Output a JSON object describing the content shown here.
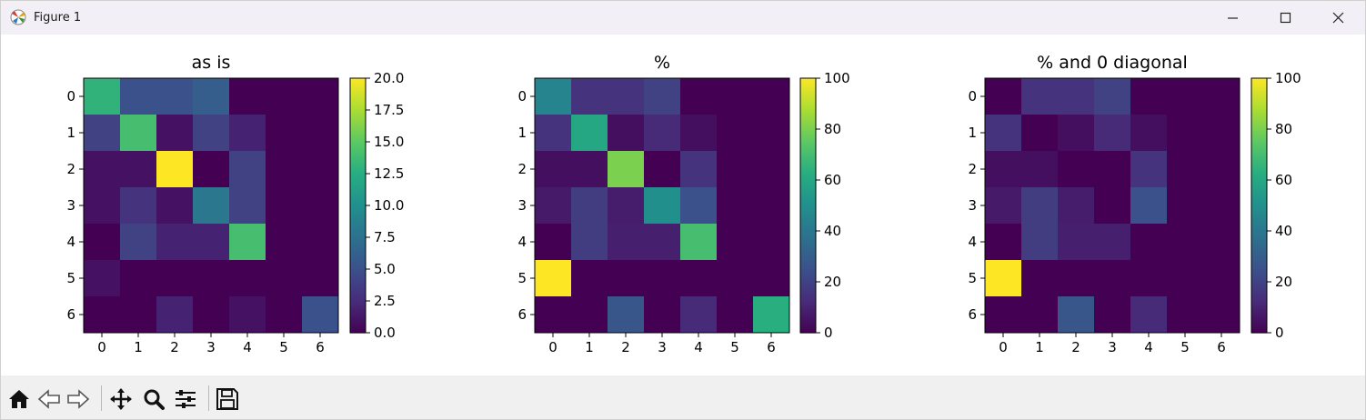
{
  "window": {
    "title": "Figure 1"
  },
  "toolbar": {
    "buttons": [
      {
        "name": "home-button",
        "icon": "home-icon"
      },
      {
        "name": "back-button",
        "icon": "arrow-left-icon"
      },
      {
        "name": "forward-button",
        "icon": "arrow-right-icon"
      },
      {
        "name": "pan-button",
        "icon": "move-icon"
      },
      {
        "name": "zoom-button",
        "icon": "magnifier-icon"
      },
      {
        "name": "configure-subplots-button",
        "icon": "sliders-icon"
      },
      {
        "name": "save-button",
        "icon": "floppy-disk-icon"
      }
    ]
  },
  "colors": {
    "colormap": "viridis",
    "titlebar": "#f3eff6",
    "toolbar": "#f0f0f0"
  },
  "chart_data": [
    {
      "type": "heatmap",
      "title": "as is",
      "x": [
        "0",
        "1",
        "2",
        "3",
        "4",
        "5",
        "6"
      ],
      "y": [
        "0",
        "1",
        "2",
        "3",
        "4",
        "5",
        "6"
      ],
      "vmin": 0,
      "vmax": 20,
      "colorbar_ticks": [
        "0.0",
        "2.5",
        "5.0",
        "7.5",
        "10.0",
        "12.5",
        "15.0",
        "17.5",
        "20.0"
      ],
      "values": [
        [
          13,
          5,
          5,
          6,
          0,
          0,
          0
        ],
        [
          4,
          14,
          1,
          4,
          2,
          0,
          0
        ],
        [
          1,
          1,
          20,
          0,
          4,
          0,
          0
        ],
        [
          1,
          3,
          1,
          8,
          4,
          0,
          0
        ],
        [
          0,
          4,
          2,
          2,
          14,
          0,
          0
        ],
        [
          1,
          0,
          0,
          0,
          0,
          0,
          0
        ],
        [
          0,
          0,
          2,
          0,
          1,
          0,
          5
        ]
      ]
    },
    {
      "type": "heatmap",
      "title": "%",
      "x": [
        "0",
        "1",
        "2",
        "3",
        "4",
        "5",
        "6"
      ],
      "y": [
        "0",
        "1",
        "2",
        "3",
        "4",
        "5",
        "6"
      ],
      "vmin": 0,
      "vmax": 100,
      "colorbar_ticks": [
        "0",
        "20",
        "40",
        "60",
        "80",
        "100"
      ],
      "values": [
        [
          45,
          15,
          15,
          20,
          0,
          0,
          0
        ],
        [
          15,
          60,
          4,
          12,
          4,
          0,
          0
        ],
        [
          4,
          4,
          80,
          0,
          15,
          0,
          0
        ],
        [
          7,
          18,
          8,
          50,
          25,
          0,
          0
        ],
        [
          0,
          18,
          9,
          9,
          70,
          0,
          0
        ],
        [
          100,
          0,
          0,
          0,
          0,
          0,
          0
        ],
        [
          0,
          0,
          27,
          0,
          12,
          0,
          63
        ]
      ]
    },
    {
      "type": "heatmap",
      "title": "% and 0 diagonal",
      "x": [
        "0",
        "1",
        "2",
        "3",
        "4",
        "5",
        "6"
      ],
      "y": [
        "0",
        "1",
        "2",
        "3",
        "4",
        "5",
        "6"
      ],
      "vmin": 0,
      "vmax": 100,
      "colorbar_ticks": [
        "0",
        "20",
        "40",
        "60",
        "80",
        "100"
      ],
      "values": [
        [
          0,
          15,
          15,
          20,
          0,
          0,
          0
        ],
        [
          15,
          0,
          4,
          12,
          4,
          0,
          0
        ],
        [
          4,
          4,
          0,
          0,
          15,
          0,
          0
        ],
        [
          7,
          18,
          8,
          0,
          25,
          0,
          0
        ],
        [
          0,
          18,
          9,
          9,
          0,
          0,
          0
        ],
        [
          100,
          0,
          0,
          0,
          0,
          0,
          0
        ],
        [
          0,
          0,
          27,
          0,
          12,
          0,
          0
        ]
      ]
    }
  ]
}
